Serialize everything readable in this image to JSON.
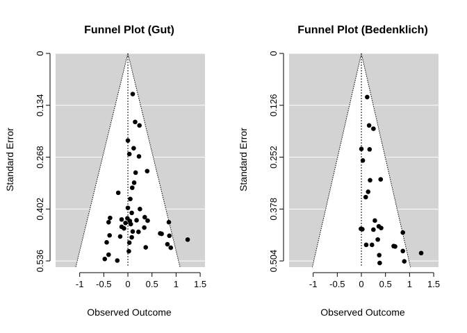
{
  "chart_data": [
    {
      "type": "scatter",
      "title": "Funnel Plot (Gut)",
      "xlabel": "Observed Outcome",
      "ylabel": "Standard Error",
      "xlim": [
        -1.5,
        1.6
      ],
      "ylim": [
        0.552,
        0
      ],
      "y_reversed": true,
      "x_ticks": [
        "-1",
        "-0.5",
        "0",
        "0.5",
        "1",
        "1.5"
      ],
      "x_tick_values": [
        -1,
        -0.5,
        0,
        0.5,
        1,
        1.5
      ],
      "y_ticks": [
        "0",
        "0.134",
        "0.268",
        "0.402",
        "0.536"
      ],
      "y_tick_values": [
        0,
        0.134,
        0.268,
        0.402,
        0.536
      ],
      "center": 0,
      "funnel_se_max": 0.552,
      "panel_color": "#d3d3d3",
      "funnel_color": "#ffffff",
      "point_color": "#000000",
      "points": [
        {
          "x": 0.1,
          "y": 0.105
        },
        {
          "x": 0.15,
          "y": 0.177
        },
        {
          "x": 0.24,
          "y": 0.186
        },
        {
          "x": 0.0,
          "y": 0.225
        },
        {
          "x": 0.12,
          "y": 0.245
        },
        {
          "x": 0.03,
          "y": 0.26
        },
        {
          "x": 0.23,
          "y": 0.266
        },
        {
          "x": 0.4,
          "y": 0.304
        },
        {
          "x": 0.16,
          "y": 0.308
        },
        {
          "x": 0.13,
          "y": 0.334
        },
        {
          "x": 0.09,
          "y": 0.347
        },
        {
          "x": -0.2,
          "y": 0.36
        },
        {
          "x": 0.05,
          "y": 0.376
        },
        {
          "x": 0.0,
          "y": 0.399
        },
        {
          "x": 0.25,
          "y": 0.402
        },
        {
          "x": 0.08,
          "y": 0.412
        },
        {
          "x": -0.37,
          "y": 0.425
        },
        {
          "x": 0.35,
          "y": 0.423
        },
        {
          "x": -0.13,
          "y": 0.429
        },
        {
          "x": -0.01,
          "y": 0.426
        },
        {
          "x": 0.04,
          "y": 0.433
        },
        {
          "x": 0.18,
          "y": 0.431
        },
        {
          "x": -0.4,
          "y": 0.436
        },
        {
          "x": 0.41,
          "y": 0.432
        },
        {
          "x": 0.85,
          "y": 0.436
        },
        {
          "x": -0.05,
          "y": 0.438
        },
        {
          "x": 0.06,
          "y": 0.441
        },
        {
          "x": -0.13,
          "y": 0.448
        },
        {
          "x": 0.34,
          "y": 0.45
        },
        {
          "x": -0.08,
          "y": 0.452
        },
        {
          "x": 0.1,
          "y": 0.46
        },
        {
          "x": 0.22,
          "y": 0.461
        },
        {
          "x": 0.67,
          "y": 0.465
        },
        {
          "x": 0.7,
          "y": 0.466
        },
        {
          "x": -0.38,
          "y": 0.47
        },
        {
          "x": -0.16,
          "y": 0.473
        },
        {
          "x": 0.86,
          "y": 0.471
        },
        {
          "x": 0.08,
          "y": 0.475
        },
        {
          "x": 1.24,
          "y": 0.481
        },
        {
          "x": -0.44,
          "y": 0.488
        },
        {
          "x": 0.03,
          "y": 0.489
        },
        {
          "x": 0.82,
          "y": 0.493
        },
        {
          "x": 0.37,
          "y": 0.501
        },
        {
          "x": 0.89,
          "y": 0.502
        },
        {
          "x": 0.02,
          "y": 0.511
        },
        {
          "x": -0.4,
          "y": 0.52
        },
        {
          "x": -0.48,
          "y": 0.531
        },
        {
          "x": -0.22,
          "y": 0.535
        }
      ]
    },
    {
      "type": "scatter",
      "title": "Funnel Plot (Bedenklich)",
      "xlabel": "Observed Outcome",
      "ylabel": "Standard Error",
      "xlim": [
        -1.5,
        1.6
      ],
      "ylim": [
        0.519,
        0
      ],
      "y_reversed": true,
      "x_ticks": [
        "-1",
        "-0.5",
        "0",
        "0.5",
        "1",
        "1.5"
      ],
      "x_tick_values": [
        -1,
        -0.5,
        0,
        0.5,
        1,
        1.5
      ],
      "y_ticks": [
        "0",
        "0.126",
        "0.252",
        "0.378",
        "0.504"
      ],
      "y_tick_values": [
        0,
        0.126,
        0.252,
        0.378,
        0.504
      ],
      "center": 0,
      "funnel_se_max": 0.519,
      "panel_color": "#d3d3d3",
      "funnel_color": "#ffffff",
      "point_color": "#000000",
      "points": [
        {
          "x": 0.12,
          "y": 0.106
        },
        {
          "x": 0.16,
          "y": 0.175
        },
        {
          "x": 0.25,
          "y": 0.183
        },
        {
          "x": 0.0,
          "y": 0.232
        },
        {
          "x": 0.17,
          "y": 0.233
        },
        {
          "x": 0.03,
          "y": 0.26
        },
        {
          "x": 0.4,
          "y": 0.306
        },
        {
          "x": 0.18,
          "y": 0.308
        },
        {
          "x": 0.14,
          "y": 0.336
        },
        {
          "x": 0.09,
          "y": 0.349
        },
        {
          "x": 0.28,
          "y": 0.406
        },
        {
          "x": 0.36,
          "y": 0.42
        },
        {
          "x": 0.41,
          "y": 0.424
        },
        {
          "x": -0.01,
          "y": 0.426
        },
        {
          "x": 0.02,
          "y": 0.427
        },
        {
          "x": 0.25,
          "y": 0.428
        },
        {
          "x": 0.86,
          "y": 0.435
        },
        {
          "x": 0.34,
          "y": 0.452
        },
        {
          "x": 0.1,
          "y": 0.465
        },
        {
          "x": 0.22,
          "y": 0.465
        },
        {
          "x": 0.67,
          "y": 0.468
        },
        {
          "x": 0.7,
          "y": 0.469
        },
        {
          "x": 0.86,
          "y": 0.48
        },
        {
          "x": 1.24,
          "y": 0.485
        },
        {
          "x": 0.37,
          "y": 0.49
        },
        {
          "x": 0.89,
          "y": 0.505
        },
        {
          "x": 0.38,
          "y": 0.509
        }
      ]
    }
  ]
}
